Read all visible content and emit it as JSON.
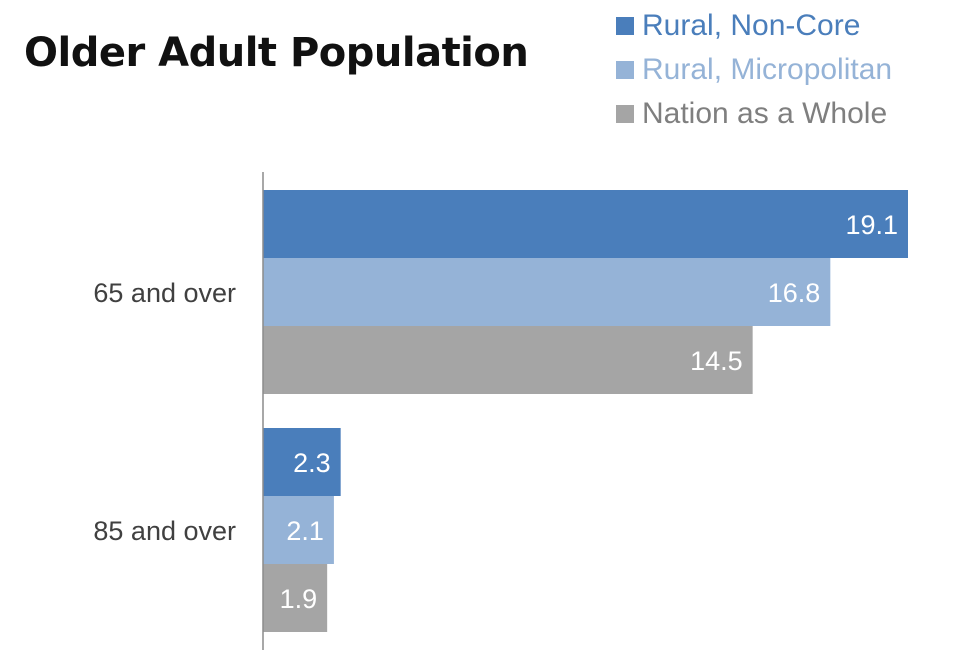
{
  "chart_data": {
    "type": "bar",
    "orientation": "horizontal",
    "title": "Older Adult Population",
    "categories": [
      "65 and over",
      "85 and over"
    ],
    "series": [
      {
        "name": "Rural, Non-Core",
        "color": "#4a7ebb",
        "values": [
          19.1,
          2.3
        ]
      },
      {
        "name": "Rural, Micropolitan",
        "color": "#95b3d7",
        "values": [
          16.8,
          2.1
        ]
      },
      {
        "name": "Nation as a Whole",
        "color": "#a5a5a5",
        "values": [
          14.5,
          1.9
        ]
      }
    ],
    "xlim": [
      0,
      19.1
    ],
    "grid": false,
    "legend_position": "top-right",
    "data_labels": true
  }
}
